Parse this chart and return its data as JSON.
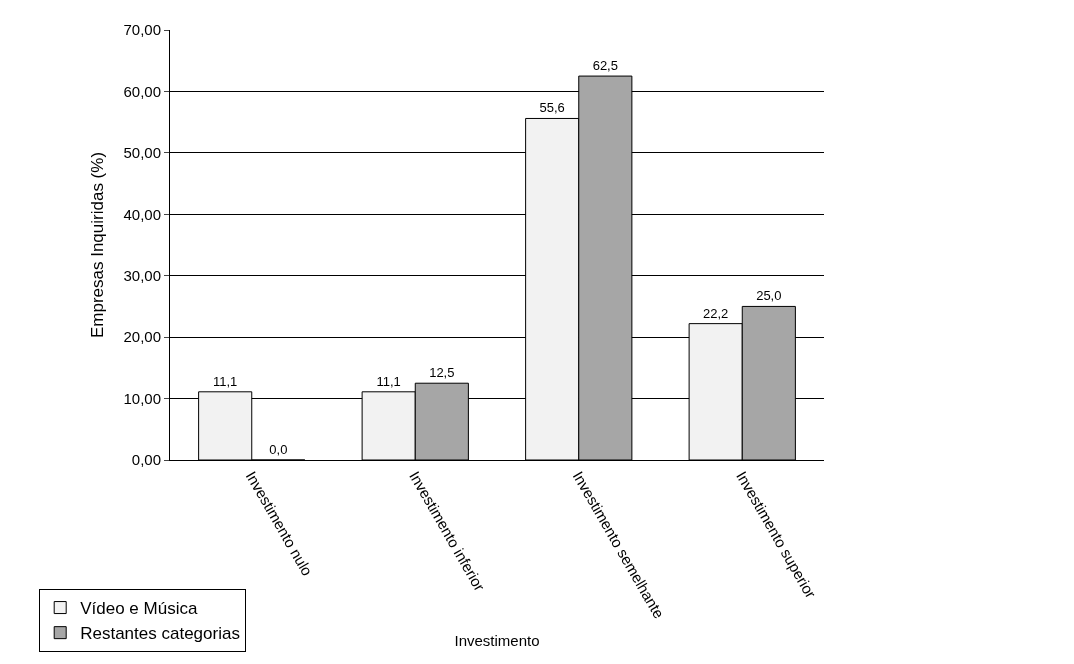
{
  "chart_data": {
    "type": "bar",
    "xlabel": "Investimento",
    "ylabel": "Empresas Inquiridas (%)",
    "categories": [
      "Investimento nulo",
      "Investimento inferior",
      "Investimento semelhante",
      "Investimento superior"
    ],
    "series": [
      {
        "name": "Vídeo e Música",
        "color": "#f2f2f2",
        "values": [
          11.1,
          11.1,
          55.6,
          22.2
        ],
        "value_labels": [
          "11,1",
          "11,1",
          "55,6",
          "22,2"
        ]
      },
      {
        "name": "Restantes categorias",
        "color": "#a6a6a6",
        "values": [
          0.0,
          12.5,
          62.5,
          25.0
        ],
        "value_labels": [
          "0,0",
          "12,5",
          "62,5",
          "25,0"
        ]
      }
    ],
    "ylim": [
      0,
      70
    ],
    "yticks": [
      {
        "value": 0,
        "label": "0,00"
      },
      {
        "value": 10,
        "label": "10,00"
      },
      {
        "value": 20,
        "label": "20,00"
      },
      {
        "value": 30,
        "label": "30,00"
      },
      {
        "value": 40,
        "label": "40,00"
      },
      {
        "value": 50,
        "label": "50,00"
      },
      {
        "value": 60,
        "label": "60,00"
      },
      {
        "value": 70,
        "label": "70,00"
      }
    ],
    "grid": "y",
    "legend": "bottom left"
  }
}
